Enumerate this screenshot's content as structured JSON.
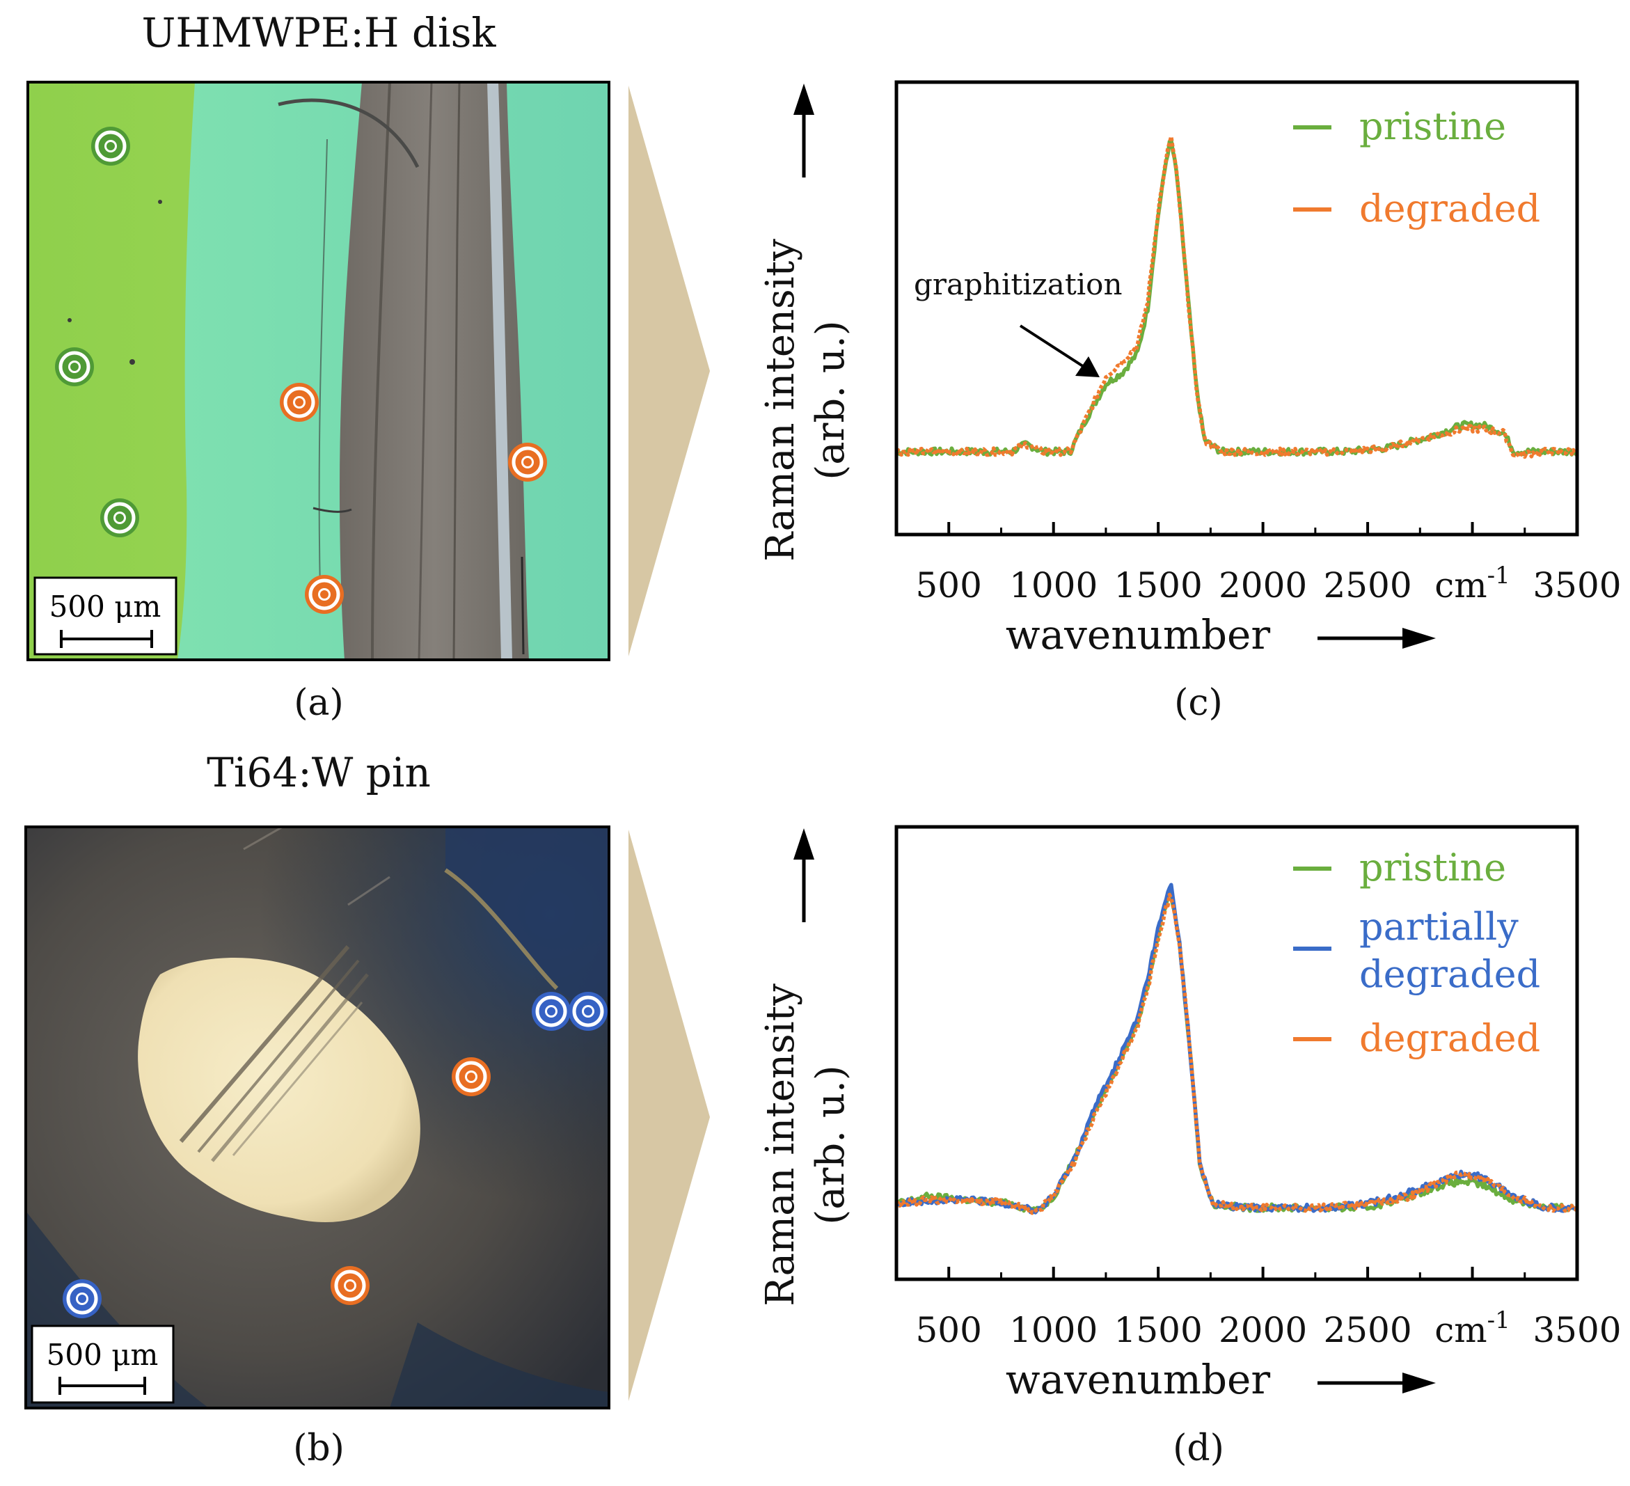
{
  "panels": {
    "a": {
      "title": "UHMWPE:H disk",
      "label": "(a)",
      "scalebar": "500 μm",
      "markers": [
        {
          "color": "green"
        },
        {
          "color": "green"
        },
        {
          "color": "green"
        },
        {
          "color": "orange"
        },
        {
          "color": "orange"
        },
        {
          "color": "orange"
        }
      ]
    },
    "b": {
      "title": "Ti64:W pin",
      "label": "(b)",
      "scalebar": "500 μm",
      "markers": [
        {
          "color": "blue"
        },
        {
          "color": "blue"
        },
        {
          "color": "blue"
        },
        {
          "color": "orange"
        },
        {
          "color": "orange"
        }
      ]
    },
    "c": {
      "label": "(c)"
    },
    "d": {
      "label": "(d)"
    }
  },
  "colors": {
    "pristine": "#6aae3e",
    "partially_degraded": "#3a6cc8",
    "degraded": "#f07a2e",
    "arrow_fill": "#d7c7a4",
    "green_marker": "#4f9a36",
    "orange_marker": "#e86e22",
    "blue_marker": "#3662c4"
  },
  "chart_data": [
    {
      "id": "c",
      "type": "line",
      "xlabel": "wavenumber",
      "x_unit": "cm-1",
      "ylabel": "Raman intensity",
      "ylabel_unit": "(arb. u.)",
      "xlim": [
        250,
        3500
      ],
      "ylim": [
        0,
        1.2
      ],
      "x_ticks": [
        500,
        1000,
        1500,
        2000,
        2500,
        3000,
        3500
      ],
      "x_tick_labels": [
        "500",
        "1000",
        "1500",
        "2000",
        "2500",
        "cm-1",
        "3500"
      ],
      "x_minor_ticks": [
        750,
        1250,
        1750,
        2250,
        2750,
        3250
      ],
      "annotation": "graphitization",
      "legend_position": "top-right",
      "series": [
        {
          "name": "pristine",
          "color_key": "pristine",
          "points": [
            [
              250,
              0.22
            ],
            [
              400,
              0.22
            ],
            [
              600,
              0.22
            ],
            [
              800,
              0.22
            ],
            [
              870,
              0.24
            ],
            [
              950,
              0.22
            ],
            [
              1080,
              0.22
            ],
            [
              1150,
              0.3
            ],
            [
              1250,
              0.4
            ],
            [
              1330,
              0.43
            ],
            [
              1400,
              0.48
            ],
            [
              1450,
              0.6
            ],
            [
              1500,
              0.85
            ],
            [
              1540,
              1.0
            ],
            [
              1560,
              1.05
            ],
            [
              1590,
              0.95
            ],
            [
              1630,
              0.7
            ],
            [
              1680,
              0.4
            ],
            [
              1720,
              0.25
            ],
            [
              1800,
              0.22
            ],
            [
              2000,
              0.22
            ],
            [
              2200,
              0.22
            ],
            [
              2400,
              0.22
            ],
            [
              2600,
              0.23
            ],
            [
              2800,
              0.26
            ],
            [
              2950,
              0.29
            ],
            [
              3050,
              0.29
            ],
            [
              3150,
              0.27
            ],
            [
              3200,
              0.22
            ],
            [
              3350,
              0.22
            ],
            [
              3500,
              0.22
            ]
          ]
        },
        {
          "name": "degraded",
          "color_key": "degraded",
          "points": [
            [
              250,
              0.22
            ],
            [
              400,
              0.22
            ],
            [
              600,
              0.22
            ],
            [
              800,
              0.22
            ],
            [
              870,
              0.24
            ],
            [
              950,
              0.22
            ],
            [
              1080,
              0.22
            ],
            [
              1150,
              0.3
            ],
            [
              1250,
              0.42
            ],
            [
              1330,
              0.46
            ],
            [
              1400,
              0.5
            ],
            [
              1450,
              0.62
            ],
            [
              1500,
              0.86
            ],
            [
              1540,
              1.0
            ],
            [
              1560,
              1.06
            ],
            [
              1590,
              0.95
            ],
            [
              1630,
              0.7
            ],
            [
              1680,
              0.4
            ],
            [
              1720,
              0.25
            ],
            [
              1800,
              0.22
            ],
            [
              2000,
              0.22
            ],
            [
              2200,
              0.22
            ],
            [
              2400,
              0.22
            ],
            [
              2600,
              0.23
            ],
            [
              2800,
              0.26
            ],
            [
              2950,
              0.28
            ],
            [
              3050,
              0.28
            ],
            [
              3150,
              0.27
            ],
            [
              3200,
              0.21
            ],
            [
              3350,
              0.22
            ],
            [
              3500,
              0.22
            ]
          ]
        }
      ]
    },
    {
      "id": "d",
      "type": "line",
      "xlabel": "wavenumber",
      "x_unit": "cm-1",
      "ylabel": "Raman intensity",
      "ylabel_unit": "(arb. u.)",
      "xlim": [
        250,
        3500
      ],
      "ylim": [
        0,
        1.2
      ],
      "x_ticks": [
        500,
        1000,
        1500,
        2000,
        2500,
        3000,
        3500
      ],
      "x_tick_labels": [
        "500",
        "1000",
        "1500",
        "2000",
        "2500",
        "cm-1",
        "3500"
      ],
      "x_minor_ticks": [
        750,
        1250,
        1750,
        2250,
        2750,
        3250
      ],
      "legend_position": "top-right",
      "series": [
        {
          "name": "pristine",
          "color_key": "pristine",
          "points": [
            [
              250,
              0.2
            ],
            [
              400,
              0.22
            ],
            [
              600,
              0.21
            ],
            [
              800,
              0.2
            ],
            [
              920,
              0.18
            ],
            [
              1000,
              0.22
            ],
            [
              1100,
              0.32
            ],
            [
              1200,
              0.45
            ],
            [
              1300,
              0.56
            ],
            [
              1400,
              0.68
            ],
            [
              1450,
              0.78
            ],
            [
              1500,
              0.92
            ],
            [
              1540,
              1.0
            ],
            [
              1560,
              1.03
            ],
            [
              1600,
              0.9
            ],
            [
              1650,
              0.62
            ],
            [
              1700,
              0.3
            ],
            [
              1760,
              0.2
            ],
            [
              1900,
              0.19
            ],
            [
              2100,
              0.19
            ],
            [
              2300,
              0.19
            ],
            [
              2500,
              0.19
            ],
            [
              2700,
              0.22
            ],
            [
              2850,
              0.25
            ],
            [
              2950,
              0.26
            ],
            [
              3050,
              0.25
            ],
            [
              3200,
              0.21
            ],
            [
              3350,
              0.19
            ],
            [
              3500,
              0.19
            ]
          ]
        },
        {
          "name": "partially\ndegraded",
          "color_key": "partially_degraded",
          "points": [
            [
              250,
              0.2
            ],
            [
              400,
              0.21
            ],
            [
              600,
              0.21
            ],
            [
              800,
              0.2
            ],
            [
              920,
              0.18
            ],
            [
              1000,
              0.22
            ],
            [
              1100,
              0.32
            ],
            [
              1200,
              0.46
            ],
            [
              1300,
              0.57
            ],
            [
              1400,
              0.69
            ],
            [
              1450,
              0.8
            ],
            [
              1500,
              0.93
            ],
            [
              1540,
              1.01
            ],
            [
              1560,
              1.05
            ],
            [
              1600,
              0.9
            ],
            [
              1650,
              0.62
            ],
            [
              1700,
              0.3
            ],
            [
              1760,
              0.2
            ],
            [
              1900,
              0.19
            ],
            [
              2100,
              0.19
            ],
            [
              2300,
              0.19
            ],
            [
              2500,
              0.2
            ],
            [
              2700,
              0.23
            ],
            [
              2850,
              0.26
            ],
            [
              2950,
              0.28
            ],
            [
              3050,
              0.27
            ],
            [
              3200,
              0.22
            ],
            [
              3350,
              0.19
            ],
            [
              3500,
              0.19
            ]
          ]
        },
        {
          "name": "degraded",
          "color_key": "degraded",
          "points": [
            [
              250,
              0.2
            ],
            [
              400,
              0.21
            ],
            [
              600,
              0.21
            ],
            [
              800,
              0.2
            ],
            [
              920,
              0.18
            ],
            [
              1000,
              0.22
            ],
            [
              1100,
              0.31
            ],
            [
              1200,
              0.44
            ],
            [
              1300,
              0.55
            ],
            [
              1400,
              0.67
            ],
            [
              1450,
              0.77
            ],
            [
              1500,
              0.91
            ],
            [
              1540,
              0.99
            ],
            [
              1560,
              1.02
            ],
            [
              1600,
              0.9
            ],
            [
              1650,
              0.62
            ],
            [
              1700,
              0.3
            ],
            [
              1760,
              0.2
            ],
            [
              1900,
              0.19
            ],
            [
              2100,
              0.19
            ],
            [
              2300,
              0.19
            ],
            [
              2500,
              0.2
            ],
            [
              2700,
              0.22
            ],
            [
              2850,
              0.26
            ],
            [
              2950,
              0.28
            ],
            [
              3050,
              0.27
            ],
            [
              3200,
              0.22
            ],
            [
              3350,
              0.19
            ],
            [
              3500,
              0.19
            ]
          ]
        }
      ]
    }
  ]
}
